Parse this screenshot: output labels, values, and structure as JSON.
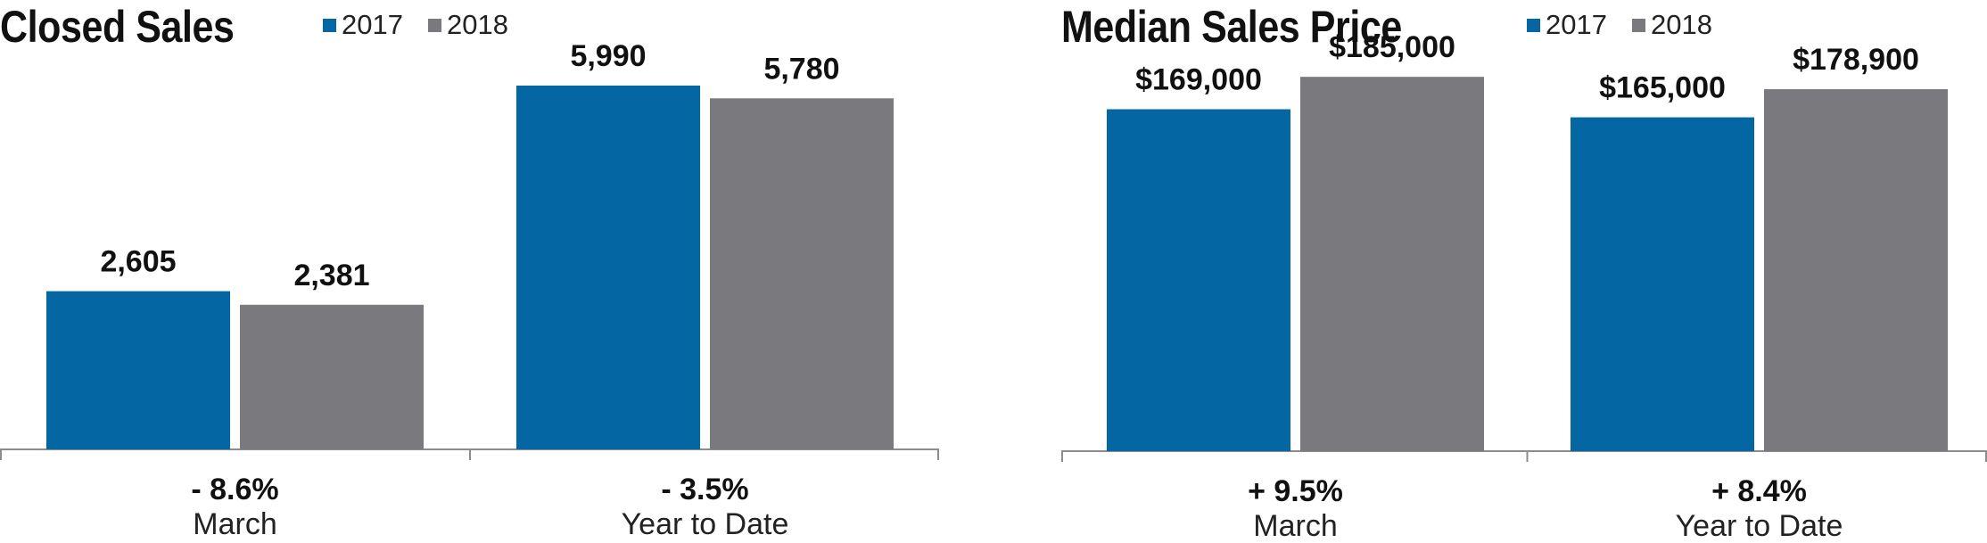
{
  "colors": {
    "2017": "#0467a4",
    "2018": "#7a797e",
    "axis": "#8c8c8c"
  },
  "chart_data": [
    {
      "type": "bar",
      "title": "Closed Sales",
      "legend": [
        "2017",
        "2018"
      ],
      "legend_position": "top",
      "categories": [
        "March",
        "Year to Date"
      ],
      "change_labels": [
        "- 8.6%",
        "- 3.5%"
      ],
      "series": [
        {
          "name": "2017",
          "values": [
            2605,
            5990
          ],
          "labels": [
            "2,605",
            "5,990"
          ]
        },
        {
          "name": "2018",
          "values": [
            2381,
            5780
          ],
          "labels": [
            "2,381",
            "5,780"
          ]
        }
      ],
      "ylim": [
        0,
        6900
      ],
      "grid": false
    },
    {
      "type": "bar",
      "title": "Median Sales Price",
      "legend": [
        "2017",
        "2018"
      ],
      "legend_position": "top",
      "categories": [
        "March",
        "Year to Date"
      ],
      "change_labels": [
        "+ 9.5%",
        "+ 8.4%"
      ],
      "series": [
        {
          "name": "2017",
          "values": [
            169000,
            165000
          ],
          "labels": [
            "$169,000",
            "$165,000"
          ]
        },
        {
          "name": "2018",
          "values": [
            185000,
            178900
          ],
          "labels": [
            "$185,000",
            "$178,900"
          ]
        }
      ],
      "ylim": [
        0,
        208000
      ],
      "grid": false
    }
  ]
}
